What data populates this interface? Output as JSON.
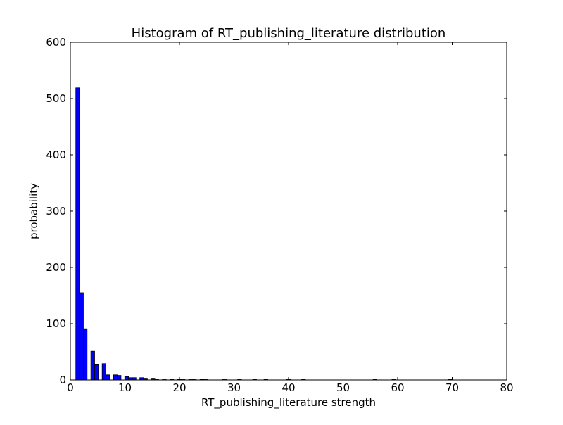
{
  "chart_data": {
    "type": "bar",
    "title": "Histogram of RT_publishing_literature  distribution",
    "xlabel": "RT_publishing_literature  strength",
    "ylabel": "probability",
    "xlim": [
      0,
      80
    ],
    "ylim": [
      0,
      600
    ],
    "x_ticks": [
      "0",
      "10",
      "20",
      "30",
      "40",
      "50",
      "60",
      "70",
      "80"
    ],
    "y_ticks": [
      "0",
      "100",
      "200",
      "300",
      "400",
      "500",
      "600"
    ],
    "bar_color": "#0000ff",
    "bar_width": 0.69,
    "grid": false,
    "series": [
      {
        "x": [
          1,
          1.69,
          2.38,
          3.76,
          4.45,
          5.83,
          6.52,
          7.9,
          8.59,
          9.97,
          10.66,
          11.35,
          12.73,
          13.42,
          14.8,
          15.49,
          16.87,
          18.25,
          19.63,
          20.32,
          21.7,
          22.39,
          23.77,
          24.46,
          27.91,
          30.67,
          33.43,
          35.5,
          39.64,
          42.4,
          55.51,
          58.96,
          69.31
        ],
        "values": [
          519,
          155,
          91,
          51,
          27,
          29,
          9,
          9,
          8,
          6,
          4,
          4,
          4,
          3,
          3,
          2,
          2,
          1,
          1,
          2,
          2,
          2,
          1,
          2,
          2,
          1,
          1,
          1,
          1,
          1,
          1,
          1,
          1
        ]
      }
    ]
  }
}
